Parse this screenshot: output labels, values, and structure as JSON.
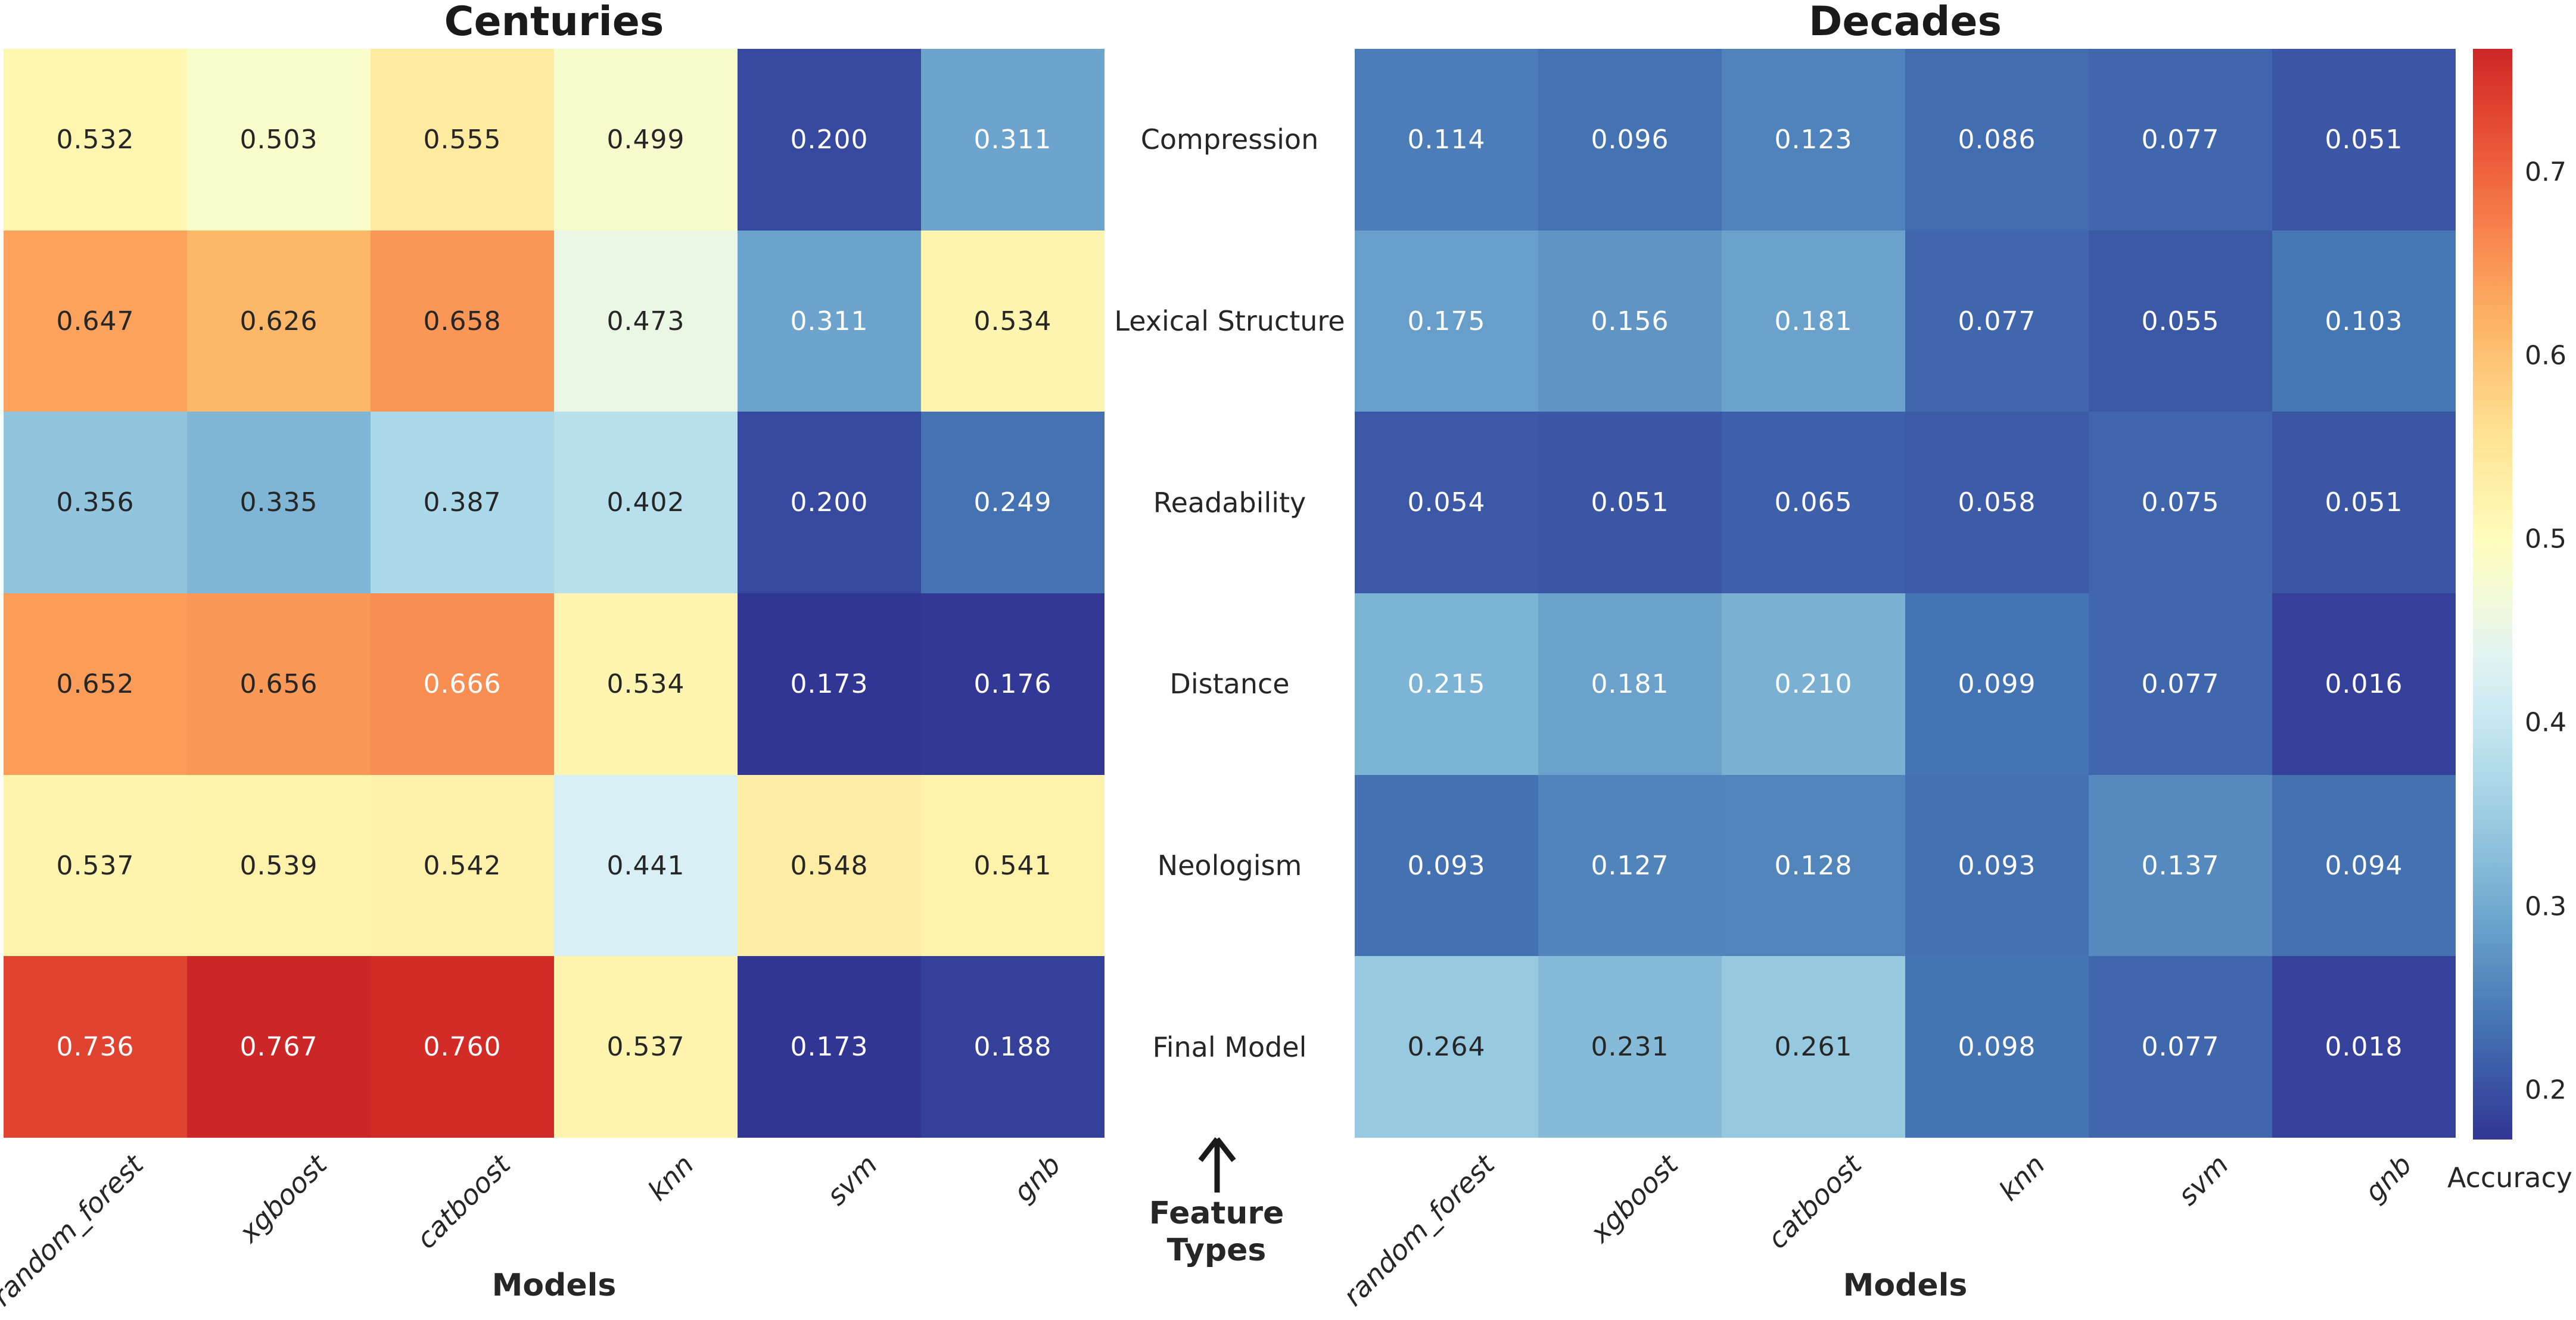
{
  "shared": {
    "models": [
      "random_forest",
      "xgboost",
      "catboost",
      "knn",
      "svm",
      "gnb"
    ],
    "feature_types": [
      "Compression",
      "Lexical Structure",
      "Readability",
      "Distance",
      "Neologism",
      "Final Model"
    ],
    "center_axis": {
      "lines": [
        "Feature",
        "Types"
      ],
      "arrow_icon": "up-arrow"
    },
    "colorbar": {
      "label": "Accuracy",
      "tick_values": [
        0.7,
        0.6,
        0.5,
        0.4,
        0.3,
        0.2
      ],
      "vmin": 0.173,
      "vmax": 0.767,
      "t_max": 0.92
    },
    "colormap_anchors": [
      "#313695",
      "#4575b4",
      "#74add1",
      "#abd9e9",
      "#e0f3f8",
      "#ffffbf",
      "#fee090",
      "#fdae61",
      "#f46d43",
      "#d73027",
      "#a50026"
    ],
    "text_color_dark": "#262626",
    "text_color_light": "#ffffff"
  },
  "chart_data": [
    {
      "type": "heatmap",
      "title": "Centuries",
      "xlabel": "Models",
      "x": [
        "random_forest",
        "xgboost",
        "catboost",
        "knn",
        "svm",
        "gnb"
      ],
      "y": [
        "Compression",
        "Lexical Structure",
        "Readability",
        "Distance",
        "Neologism",
        "Final Model"
      ],
      "values": [
        [
          0.532,
          0.503,
          0.555,
          0.499,
          0.2,
          0.311
        ],
        [
          0.647,
          0.626,
          0.658,
          0.473,
          0.311,
          0.534
        ],
        [
          0.356,
          0.335,
          0.387,
          0.402,
          0.2,
          0.249
        ],
        [
          0.652,
          0.656,
          0.666,
          0.534,
          0.173,
          0.176
        ],
        [
          0.537,
          0.539,
          0.542,
          0.441,
          0.548,
          0.541
        ],
        [
          0.736,
          0.767,
          0.76,
          0.537,
          0.173,
          0.188
        ]
      ],
      "value_decimals": 3,
      "color_scale": {
        "vmin": 0.173,
        "vmax": 0.767,
        "gamma": 1.1,
        "t_max": 0.92,
        "luma_threshold": 0.415
      }
    },
    {
      "type": "heatmap",
      "title": "Decades",
      "xlabel": "Models",
      "x": [
        "random_forest",
        "xgboost",
        "catboost",
        "knn",
        "svm",
        "gnb"
      ],
      "y": [
        "Compression",
        "Lexical Structure",
        "Readability",
        "Distance",
        "Neologism",
        "Final Model"
      ],
      "values": [
        [
          0.114,
          0.096,
          0.123,
          0.086,
          0.077,
          0.051
        ],
        [
          0.175,
          0.156,
          0.181,
          0.077,
          0.055,
          0.103
        ],
        [
          0.054,
          0.051,
          0.065,
          0.058,
          0.075,
          0.051
        ],
        [
          0.215,
          0.181,
          0.21,
          0.099,
          0.077,
          0.016
        ],
        [
          0.093,
          0.127,
          0.128,
          0.093,
          0.137,
          0.094
        ],
        [
          0.264,
          0.231,
          0.261,
          0.098,
          0.077,
          0.018
        ]
      ],
      "value_decimals": 3,
      "color_scale": {
        "vmin": 0.0,
        "vmax": 1.0,
        "gamma": 1.0,
        "t_max": 1.0,
        "luma_threshold": 0.43
      }
    }
  ]
}
